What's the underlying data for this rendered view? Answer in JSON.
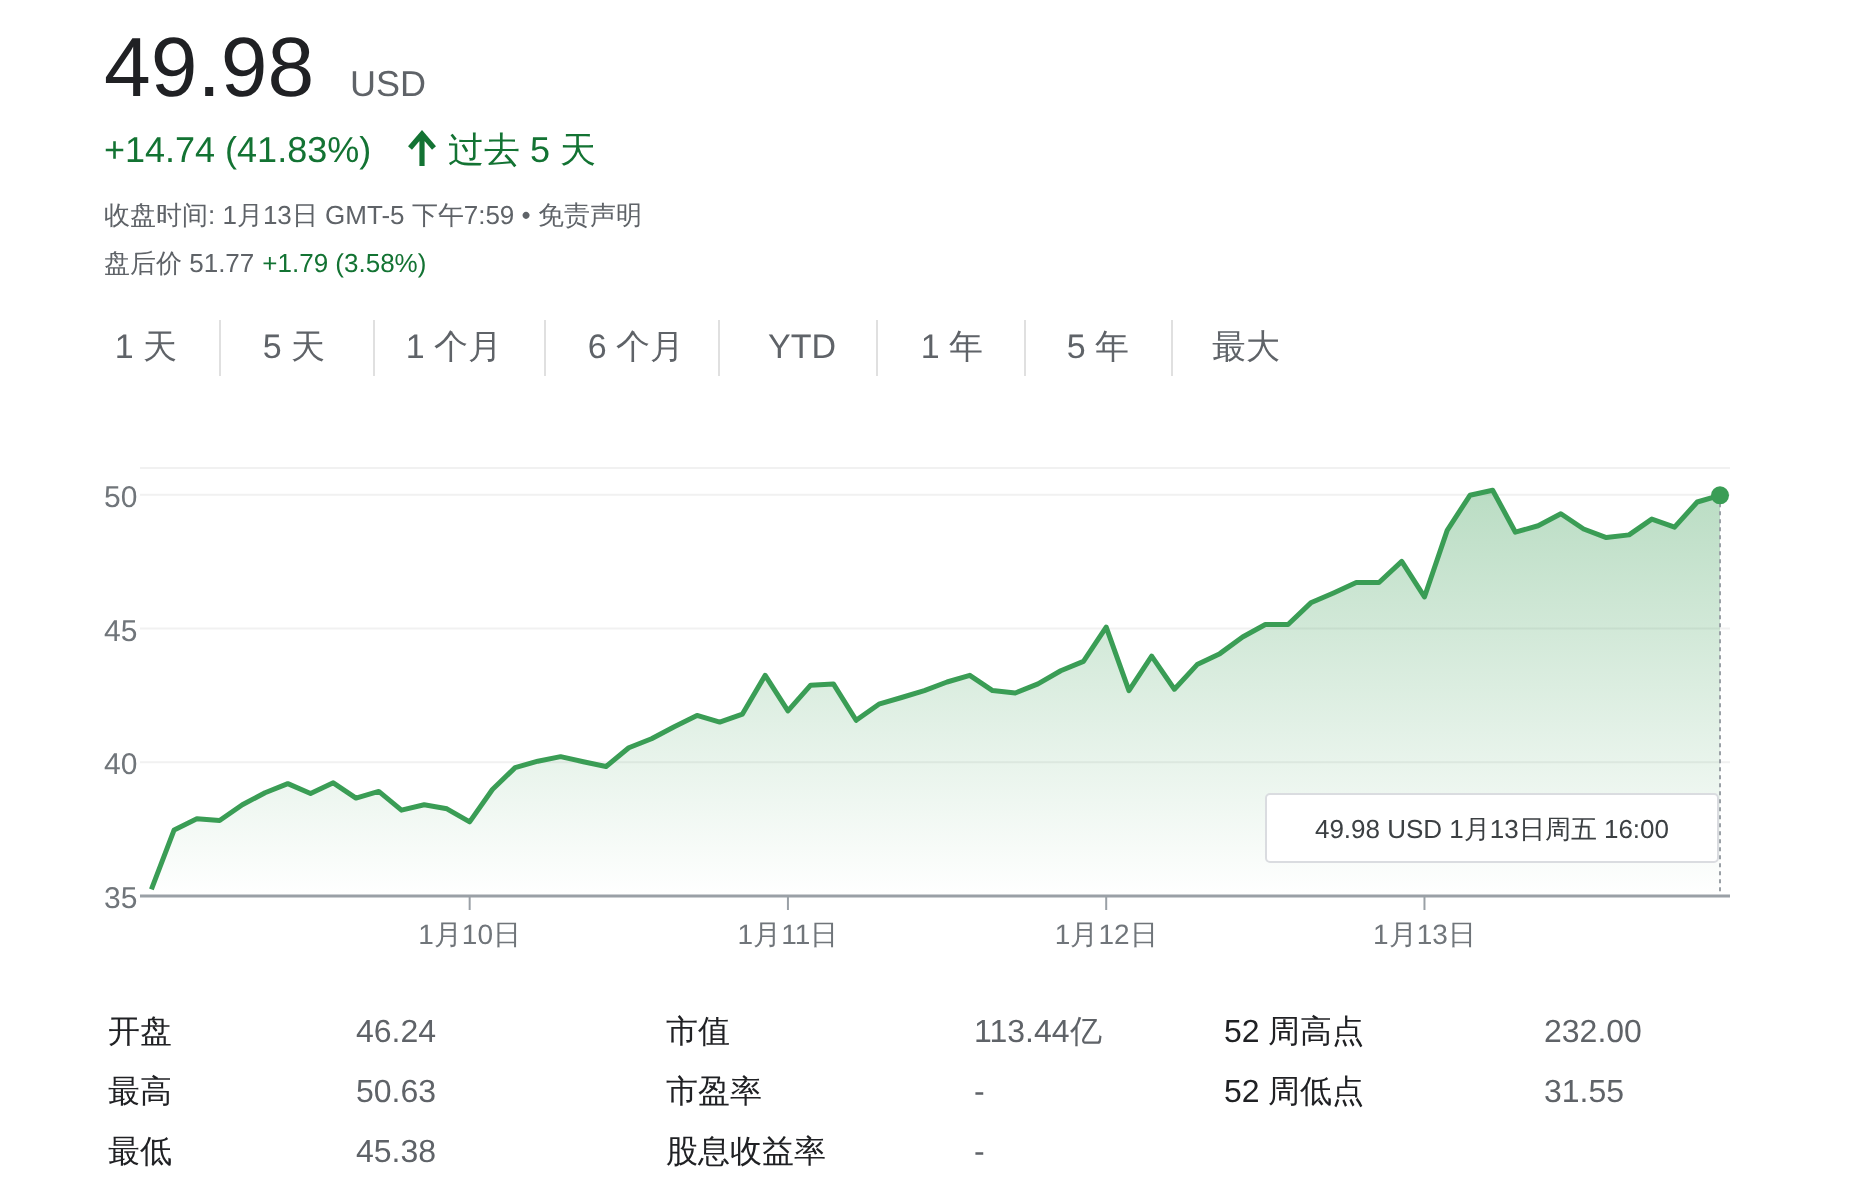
{
  "chart_data": {
    "type": "area",
    "title": "49.98",
    "subtitle": "USD",
    "categories": [
      null,
      null,
      null,
      null,
      null,
      null,
      null,
      null,
      null,
      null,
      null,
      null,
      null,
      null,
      "1月10日",
      null,
      null,
      null,
      null,
      null,
      null,
      null,
      null,
      null,
      null,
      null,
      null,
      null,
      "1月11日",
      null,
      null,
      null,
      null,
      null,
      null,
      null,
      null,
      null,
      null,
      null,
      null,
      null,
      "1月12日",
      null,
      null,
      null,
      null,
      null,
      null,
      null,
      null,
      null,
      null,
      null,
      null,
      null,
      "1月13日",
      null,
      null,
      null,
      null,
      null,
      null,
      null,
      null,
      null,
      null,
      null,
      null,
      null
    ],
    "series": [
      {
        "color": "#3a9d55",
        "values": [
          35.25,
          37.47,
          37.89,
          37.82,
          38.41,
          38.86,
          39.2,
          38.83,
          39.23,
          38.66,
          38.91,
          38.21,
          38.41,
          38.26,
          37.77,
          38.98,
          39.8,
          40.04,
          40.21,
          40.02,
          39.84,
          40.54,
          40.88,
          41.33,
          41.75,
          41.5,
          41.8,
          43.25,
          41.92,
          42.88,
          42.93,
          41.57,
          42.17,
          42.42,
          42.68,
          43.0,
          43.25,
          42.68,
          42.59,
          42.93,
          43.42,
          43.77,
          45.05,
          42.68,
          43.97,
          42.73,
          43.65,
          44.06,
          44.68,
          45.15,
          45.15,
          45.96,
          46.33,
          46.72,
          46.72,
          47.51,
          46.18,
          48.67,
          49.98,
          50.17,
          48.6,
          48.84,
          49.29,
          48.72,
          48.4,
          48.5,
          49.09,
          48.79,
          49.73,
          49.98
        ]
      }
    ],
    "ylim": [
      35,
      51
    ],
    "yticks": [
      35,
      40,
      45,
      50
    ],
    "grid": "y",
    "marker": "none",
    "line_style": "solid",
    "annotations": [
      "+14.74 (41.83%)",
      "过去 5 天",
      "收盘时间: 1月13日 GMT-5 下午7:59 • 免责声明",
      "盘后价 51.77",
      "+1.79 (3.58%)",
      "1 天",
      "5 天",
      "1 个月",
      "6 个月",
      "YTD",
      "1 年",
      "5 年",
      "最大",
      "开盘",
      "46.24",
      "市值",
      "113.44亿",
      "52 周高点",
      "232.00",
      "最高",
      "50.63",
      "市盈率",
      "-",
      "52 周低点",
      "31.55",
      "最低",
      "45.38",
      "股息收益率",
      "-",
      "49.98 USD  1月13日周五 16:00"
    ]
  }
}
